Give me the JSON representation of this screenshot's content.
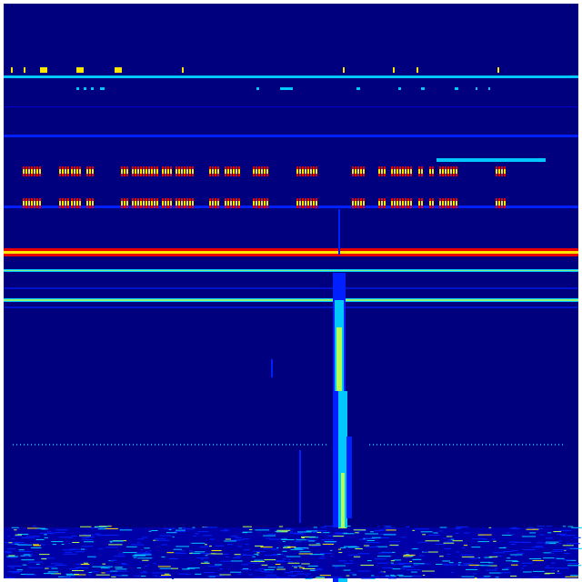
{
  "spectrogram": {
    "colormap": "jet",
    "colors": {
      "background": "#00007f",
      "deep_blue": "#0000c8",
      "blue": "#0020ff",
      "cyan": "#00c8ff",
      "green_yellow": "#b4ff50",
      "yellow": "#ffe600",
      "red": "#e60000",
      "dark_red": "#8c0000"
    }
  }
}
